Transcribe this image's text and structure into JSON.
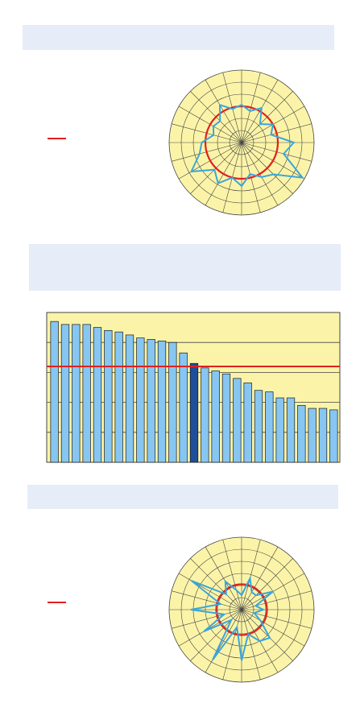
{
  "colors": {
    "banner": "#e6ecf8",
    "plot_bg": "#fbf4a8",
    "series": "#3aa6dc",
    "reference": "#e02020",
    "bar_fill": "#87c6f2",
    "bar_highlight": "#1f4e9a",
    "grid": "#444444"
  },
  "chart_data": [
    {
      "type": "radar",
      "grid": true,
      "rings": 6,
      "spokes": 24,
      "reference_radius_fraction": 0.5,
      "series": [
        {
          "values": [
            0.52,
            0.45,
            0.55,
            0.36,
            0.5,
            0.42,
            0.72,
            0.6,
            0.97,
            0.62,
            0.55,
            0.45,
            0.6,
            0.5,
            0.65,
            0.53,
            0.8,
            0.6,
            0.55,
            0.4,
            0.45,
            0.42,
            0.6,
            0.48
          ]
        }
      ]
    },
    {
      "type": "bar",
      "grid": true,
      "ylim": [
        0,
        100
      ],
      "reference_value": 64,
      "highlight_index": 13,
      "values": [
        94,
        92,
        92,
        92,
        90,
        88,
        87,
        85,
        83,
        82,
        81,
        80,
        73,
        66,
        63,
        61,
        59,
        56,
        53,
        48,
        47,
        43,
        43,
        38,
        36,
        36,
        35
      ]
    },
    {
      "type": "radar",
      "grid": true,
      "rings": 6,
      "spokes": 24,
      "reference_radius_fraction": 0.35,
      "series": [
        {
          "values": [
            0.2,
            0.45,
            0.28,
            0.28,
            0.5,
            0.2,
            0.3,
            0.18,
            0.3,
            0.55,
            0.5,
            0.35,
            0.7,
            0.25,
            0.8,
            0.2,
            0.6,
            0.25,
            0.7,
            0.3,
            0.8,
            0.3,
            0.45,
            0.28
          ]
        }
      ]
    }
  ]
}
